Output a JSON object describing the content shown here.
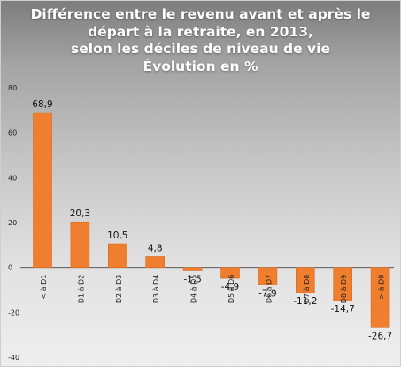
{
  "title_lines": [
    "Différence entre le revenu avant et après le",
    "départ à la retraite, en 2013,",
    "selon les déciles de niveau de vie",
    "Évolution en %"
  ],
  "colors": {
    "bar": "#ef7f2e",
    "bar_edge": "#d9691c",
    "zero_line": "#444444"
  },
  "chart_data": {
    "type": "bar",
    "title": "Différence entre le revenu avant et après le départ à la retraite, en 2013, selon les déciles de niveau de vie Évolution en %",
    "categories": [
      "< à D1",
      "D1 à D2",
      "D2 à D3",
      "D3 à D4",
      "D4 à D5",
      "D5 à D6",
      "D6 à D7",
      "D7 à D8",
      "D8 à D9",
      "> à D9"
    ],
    "values": [
      68.9,
      20.3,
      10.5,
      4.8,
      -1.5,
      -4.9,
      -7.9,
      -11.2,
      -14.7,
      -26.7
    ],
    "value_labels": [
      "68,9",
      "20,3",
      "10,5",
      "4,8",
      "-1,5",
      "-4,9",
      "-7,9",
      "-11,2",
      "-14,7",
      "-26,7"
    ],
    "ylim": [
      -40,
      80
    ],
    "yticks": [
      -40,
      -20,
      0,
      20,
      40,
      60,
      80
    ],
    "xlabel": "",
    "ylabel": "",
    "grid": false,
    "legend": "none"
  }
}
